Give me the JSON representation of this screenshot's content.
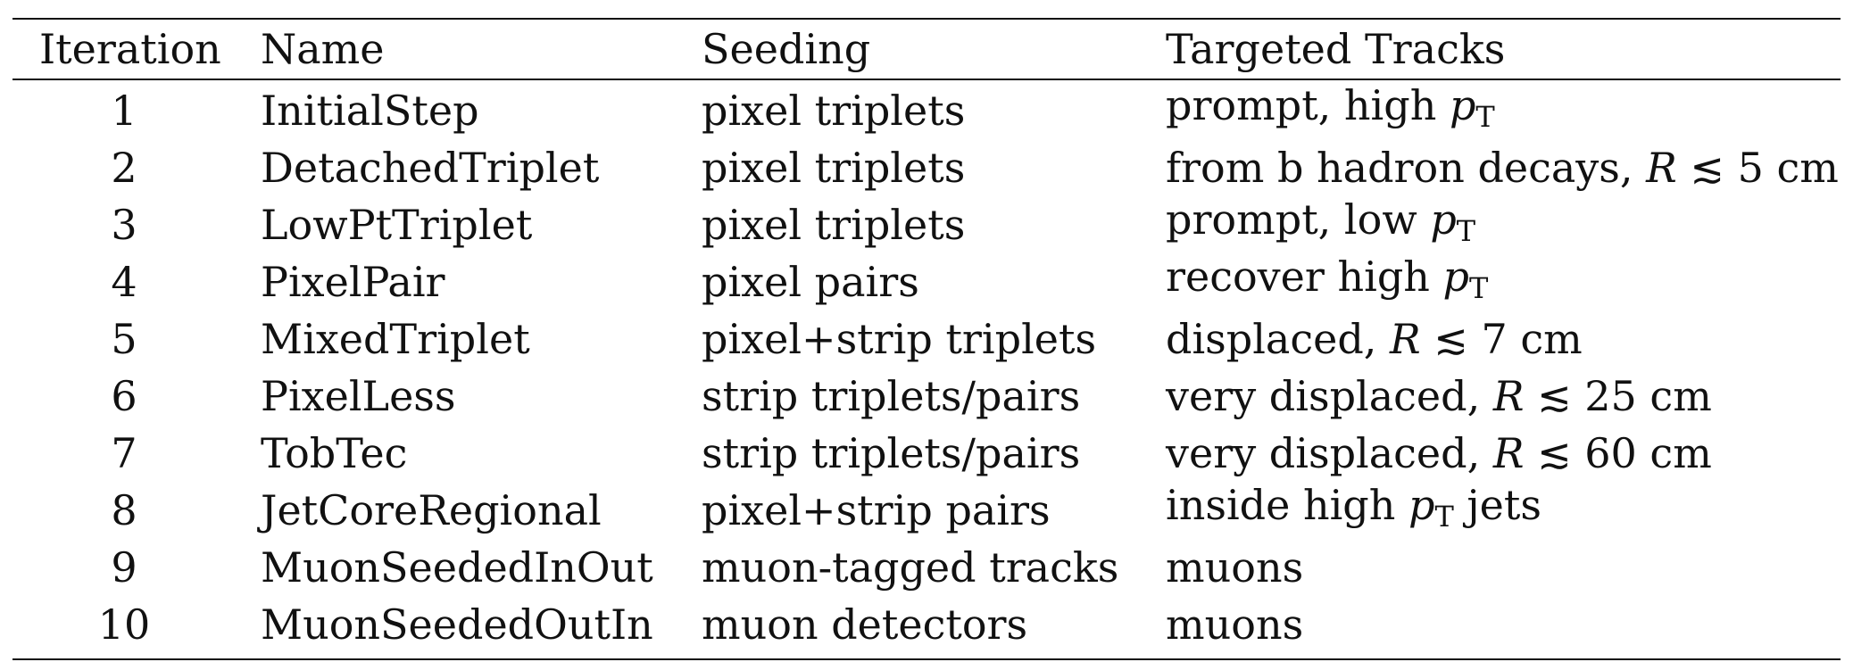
{
  "table": {
    "headers": {
      "iteration": "Iteration",
      "name": "Name",
      "seeding": "Seeding",
      "targeted": "Targeted Tracks"
    },
    "rows": [
      {
        "iteration": "1",
        "name": "InitialStep",
        "seeding": "pixel triplets",
        "target_prefix": "prompt, high ",
        "target_math": "p",
        "target_sub": "T",
        "target_suffix": ""
      },
      {
        "iteration": "2",
        "name": "DetachedTriplet",
        "seeding": "pixel triplets",
        "target_prefix": "from b hadron decays, ",
        "target_math": "R",
        "target_sub": "",
        "target_suffix": " ≲ 5 cm"
      },
      {
        "iteration": "3",
        "name": "LowPtTriplet",
        "seeding": "pixel triplets",
        "target_prefix": "prompt, low ",
        "target_math": "p",
        "target_sub": "T",
        "target_suffix": ""
      },
      {
        "iteration": "4",
        "name": "PixelPair",
        "seeding": "pixel pairs",
        "target_prefix": "recover high ",
        "target_math": "p",
        "target_sub": "T",
        "target_suffix": ""
      },
      {
        "iteration": "5",
        "name": "MixedTriplet",
        "seeding": "pixel+strip triplets",
        "target_prefix": "displaced, ",
        "target_math": "R",
        "target_sub": "",
        "target_suffix": " ≲ 7 cm"
      },
      {
        "iteration": "6",
        "name": "PixelLess",
        "seeding": "strip triplets/pairs",
        "target_prefix": "very displaced, ",
        "target_math": "R",
        "target_sub": "",
        "target_suffix": " ≲ 25 cm"
      },
      {
        "iteration": "7",
        "name": "TobTec",
        "seeding": "strip triplets/pairs",
        "target_prefix": "very displaced, ",
        "target_math": "R",
        "target_sub": "",
        "target_suffix": " ≲ 60 cm"
      },
      {
        "iteration": "8",
        "name": "JetCoreRegional",
        "seeding": "pixel+strip pairs",
        "target_prefix": "inside high ",
        "target_math": "p",
        "target_sub": "T",
        "target_suffix": " jets"
      },
      {
        "iteration": "9",
        "name": "MuonSeededInOut",
        "seeding": "muon-tagged tracks",
        "target_prefix": "muons",
        "target_math": "",
        "target_sub": "",
        "target_suffix": ""
      },
      {
        "iteration": "10",
        "name": "MuonSeededOutIn",
        "seeding": "muon detectors",
        "target_prefix": "muons",
        "target_math": "",
        "target_sub": "",
        "target_suffix": ""
      }
    ]
  }
}
